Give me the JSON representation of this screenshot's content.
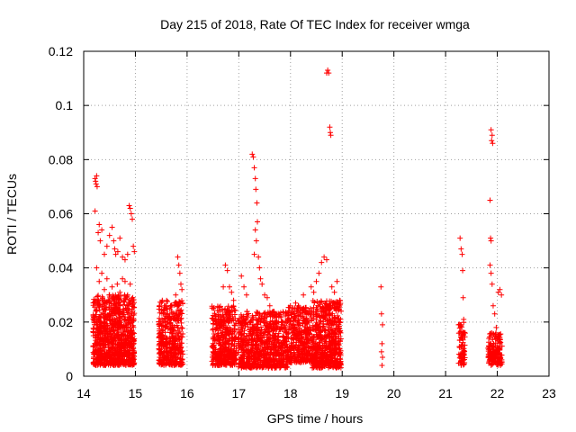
{
  "chart_data": {
    "type": "scatter",
    "title": "Day 215 of 2018, Rate Of TEC Index for receiver wmga",
    "xlabel": "GPS time / hours",
    "ylabel": "ROTI / TECUs",
    "xlim": [
      14,
      23
    ],
    "ylim": [
      0,
      0.12
    ],
    "x_ticks": [
      "14",
      "15",
      "16",
      "17",
      "18",
      "19",
      "20",
      "21",
      "22",
      "23"
    ],
    "y_ticks": [
      "0",
      "0.02",
      "0.04",
      "0.06",
      "0.08",
      "0.1",
      "0.12"
    ],
    "grid": true,
    "marker": "plus",
    "color": "#ff0000",
    "series": [
      {
        "name": "ROTI",
        "points": [
          [
            14.22,
            0.073
          ],
          [
            14.24,
            0.071
          ],
          [
            14.25,
            0.074
          ],
          [
            14.23,
            0.072
          ],
          [
            14.26,
            0.07
          ],
          [
            14.22,
            0.061
          ],
          [
            14.28,
            0.053
          ],
          [
            14.3,
            0.056
          ],
          [
            14.32,
            0.05
          ],
          [
            14.35,
            0.054
          ],
          [
            14.4,
            0.045
          ],
          [
            14.45,
            0.048
          ],
          [
            14.5,
            0.052
          ],
          [
            14.55,
            0.055
          ],
          [
            14.58,
            0.05
          ],
          [
            14.6,
            0.047
          ],
          [
            14.62,
            0.045
          ],
          [
            14.66,
            0.046
          ],
          [
            14.7,
            0.051
          ],
          [
            14.75,
            0.044
          ],
          [
            14.8,
            0.043
          ],
          [
            14.85,
            0.045
          ],
          [
            14.88,
            0.063
          ],
          [
            14.9,
            0.062
          ],
          [
            14.92,
            0.06
          ],
          [
            14.94,
            0.058
          ],
          [
            14.96,
            0.048
          ],
          [
            14.98,
            0.046
          ],
          [
            14.25,
            0.04
          ],
          [
            14.3,
            0.035
          ],
          [
            14.35,
            0.038
          ],
          [
            14.4,
            0.032
          ],
          [
            14.45,
            0.036
          ],
          [
            14.5,
            0.03
          ],
          [
            14.55,
            0.033
          ],
          [
            14.6,
            0.028
          ],
          [
            14.65,
            0.034
          ],
          [
            14.7,
            0.031
          ],
          [
            14.75,
            0.036
          ],
          [
            14.8,
            0.035
          ],
          [
            14.85,
            0.03
          ],
          [
            14.9,
            0.034
          ],
          [
            14.95,
            0.029
          ],
          [
            15.52,
            0.028
          ],
          [
            15.58,
            0.026
          ],
          [
            15.62,
            0.025
          ],
          [
            15.7,
            0.024
          ],
          [
            15.78,
            0.03
          ],
          [
            15.82,
            0.044
          ],
          [
            15.84,
            0.041
          ],
          [
            15.86,
            0.038
          ],
          [
            15.88,
            0.034
          ],
          [
            15.9,
            0.032
          ],
          [
            16.55,
            0.02
          ],
          [
            16.6,
            0.022
          ],
          [
            16.65,
            0.024
          ],
          [
            16.7,
            0.033
          ],
          [
            16.74,
            0.041
          ],
          [
            16.78,
            0.039
          ],
          [
            16.82,
            0.033
          ],
          [
            16.86,
            0.031
          ],
          [
            16.9,
            0.028
          ],
          [
            17.05,
            0.037
          ],
          [
            17.1,
            0.033
          ],
          [
            17.15,
            0.03
          ],
          [
            17.26,
            0.082
          ],
          [
            17.28,
            0.081
          ],
          [
            17.3,
            0.077
          ],
          [
            17.32,
            0.073
          ],
          [
            17.33,
            0.069
          ],
          [
            17.35,
            0.064
          ],
          [
            17.36,
            0.057
          ],
          [
            17.32,
            0.054
          ],
          [
            17.34,
            0.05
          ],
          [
            17.3,
            0.045
          ],
          [
            17.38,
            0.044
          ],
          [
            17.4,
            0.04
          ],
          [
            17.42,
            0.036
          ],
          [
            17.45,
            0.034
          ],
          [
            17.5,
            0.03
          ],
          [
            17.55,
            0.029
          ],
          [
            17.6,
            0.026
          ],
          [
            18.05,
            0.024
          ],
          [
            18.1,
            0.027
          ],
          [
            18.15,
            0.025
          ],
          [
            18.2,
            0.022
          ],
          [
            18.25,
            0.03
          ],
          [
            18.3,
            0.025
          ],
          [
            18.4,
            0.033
          ],
          [
            18.45,
            0.031
          ],
          [
            18.5,
            0.035
          ],
          [
            18.55,
            0.038
          ],
          [
            18.6,
            0.042
          ],
          [
            18.65,
            0.044
          ],
          [
            18.7,
            0.043
          ],
          [
            18.72,
            0.113
          ],
          [
            18.74,
            0.112
          ],
          [
            18.7,
            0.112
          ],
          [
            18.76,
            0.092
          ],
          [
            18.77,
            0.09
          ],
          [
            18.78,
            0.089
          ],
          [
            18.8,
            0.033
          ],
          [
            18.85,
            0.031
          ],
          [
            18.9,
            0.035
          ],
          [
            18.95,
            0.028
          ],
          [
            18.98,
            0.024
          ],
          [
            19.75,
            0.033
          ],
          [
            19.76,
            0.023
          ],
          [
            19.78,
            0.019
          ],
          [
            19.77,
            0.012
          ],
          [
            19.76,
            0.009
          ],
          [
            19.78,
            0.007
          ],
          [
            19.77,
            0.004
          ],
          [
            21.28,
            0.051
          ],
          [
            21.3,
            0.047
          ],
          [
            21.32,
            0.045
          ],
          [
            21.33,
            0.039
          ],
          [
            21.34,
            0.029
          ],
          [
            21.35,
            0.021
          ],
          [
            21.32,
            0.015
          ],
          [
            21.3,
            0.011
          ],
          [
            21.33,
            0.008
          ],
          [
            21.34,
            0.005
          ],
          [
            21.86,
            0.065
          ],
          [
            21.88,
            0.091
          ],
          [
            21.9,
            0.089
          ],
          [
            21.89,
            0.087
          ],
          [
            21.91,
            0.086
          ],
          [
            21.87,
            0.051
          ],
          [
            21.88,
            0.05
          ],
          [
            21.86,
            0.041
          ],
          [
            21.88,
            0.038
          ],
          [
            21.9,
            0.034
          ],
          [
            21.92,
            0.026
          ],
          [
            21.95,
            0.023
          ],
          [
            21.98,
            0.018
          ],
          [
            22.02,
            0.031
          ],
          [
            22.05,
            0.032
          ],
          [
            22.08,
            0.03
          ],
          [
            22.03,
            0.01
          ],
          [
            22.06,
            0.004
          ]
        ]
      }
    ]
  }
}
